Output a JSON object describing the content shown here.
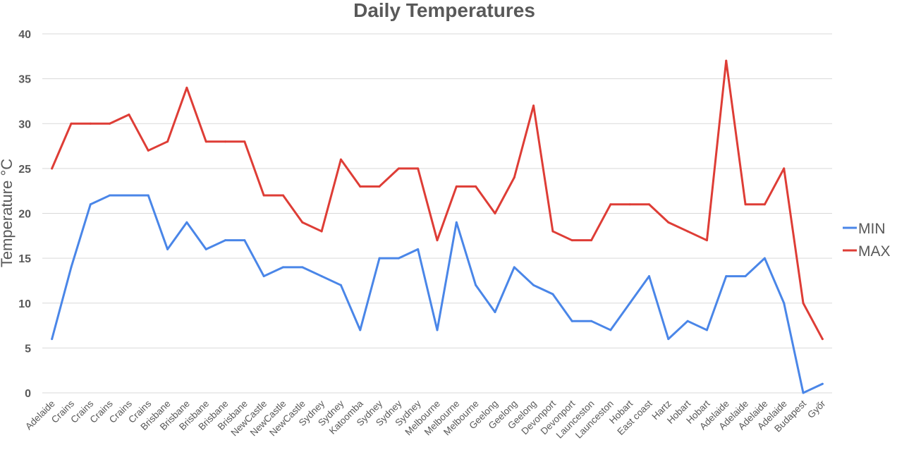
{
  "chart_data": {
    "type": "line",
    "title": "Daily Temperatures",
    "xlabel": "",
    "ylabel": "Temperature °C",
    "ylim": [
      0,
      40
    ],
    "yticks": [
      0,
      5,
      10,
      15,
      20,
      25,
      30,
      35,
      40
    ],
    "grid": true,
    "legend_position": "right",
    "categories": [
      "Adelaide",
      "Crains",
      "Crains",
      "Crains",
      "Crains",
      "Crains",
      "Brisbane",
      "Brisbane",
      "Brisbane",
      "Brisbane",
      "Brisbane",
      "NewCastle",
      "NewCastle",
      "NewCastle",
      "Sydney",
      "Sydney",
      "Katoomba",
      "Sydney",
      "Sydney",
      "Sydney",
      "Melbourne",
      "Melbourne",
      "Melbourne",
      "Geelong",
      "Geelong",
      "Geelong",
      "Devonport",
      "Devonport",
      "Launceston",
      "Launceston",
      "Hobart",
      "East coast",
      "Hartz",
      "Hobart",
      "Hobart",
      "Adelaide",
      "Adelaide",
      "Adelaide",
      "Adelaide",
      "Budapest",
      "Győr"
    ],
    "series": [
      {
        "name": "MIN",
        "color": "#4a86e8",
        "values": [
          6,
          14,
          21,
          22,
          22,
          22,
          16,
          19,
          16,
          17,
          17,
          13,
          14,
          14,
          13,
          12,
          7,
          15,
          15,
          16,
          7,
          19,
          12,
          9,
          14,
          12,
          11,
          8,
          8,
          7,
          10,
          13,
          6,
          8,
          7,
          13,
          13,
          15,
          10,
          0,
          1
        ]
      },
      {
        "name": "MAX",
        "color": "#de3d36",
        "values": [
          25,
          30,
          30,
          30,
          31,
          27,
          28,
          34,
          28,
          28,
          28,
          22,
          22,
          19,
          18,
          26,
          23,
          23,
          25,
          25,
          17,
          23,
          23,
          20,
          24,
          32,
          18,
          17,
          17,
          21,
          21,
          21,
          19,
          18,
          17,
          37,
          21,
          21,
          25,
          10,
          6
        ]
      }
    ]
  }
}
